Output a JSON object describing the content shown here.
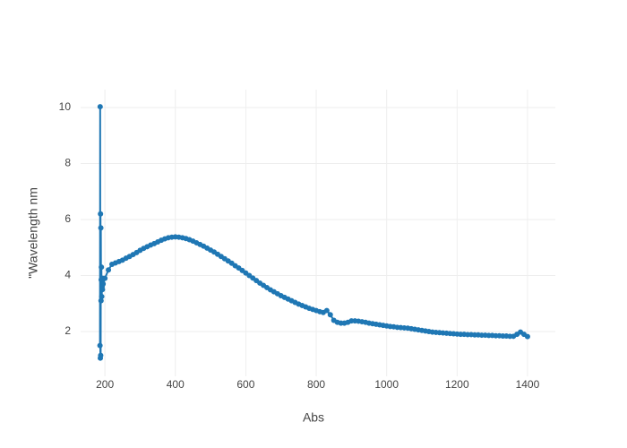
{
  "chart_data": {
    "type": "line",
    "mode": "lines+markers",
    "color": "#1f77b4",
    "x_label": "Abs",
    "y_label": "\"Wavelength nm",
    "xlim": [
      131,
      1479
    ],
    "ylim": [
      0.4,
      10.64
    ],
    "xticks": [
      200,
      400,
      600,
      800,
      1000,
      1200,
      1400
    ],
    "yticks": [
      2,
      4,
      6,
      8,
      10
    ],
    "grid": true,
    "x": [
      186,
      186.5,
      187,
      187.5,
      188,
      188.5,
      189,
      189.5,
      190,
      191,
      192,
      193,
      194,
      195,
      200,
      210,
      220,
      230,
      240,
      250,
      260,
      270,
      280,
      290,
      300,
      310,
      320,
      330,
      340,
      350,
      360,
      370,
      380,
      390,
      400,
      410,
      420,
      430,
      440,
      450,
      460,
      470,
      480,
      490,
      500,
      510,
      520,
      530,
      540,
      550,
      560,
      570,
      580,
      590,
      600,
      610,
      620,
      630,
      640,
      650,
      660,
      670,
      680,
      690,
      700,
      710,
      720,
      730,
      740,
      750,
      760,
      770,
      780,
      790,
      800,
      810,
      820,
      830,
      840,
      850,
      860,
      870,
      880,
      890,
      900,
      910,
      920,
      930,
      940,
      950,
      960,
      970,
      980,
      990,
      1000,
      1010,
      1020,
      1030,
      1040,
      1050,
      1060,
      1070,
      1080,
      1090,
      1100,
      1110,
      1120,
      1130,
      1140,
      1150,
      1160,
      1170,
      1180,
      1190,
      1200,
      1210,
      1220,
      1230,
      1240,
      1250,
      1260,
      1270,
      1280,
      1290,
      1300,
      1310,
      1320,
      1330,
      1340,
      1350,
      1360,
      1370,
      1380,
      1390,
      1400
    ],
    "values": [
      1.5,
      10.03,
      1.05,
      6.2,
      1.15,
      5.7,
      3.1,
      3.85,
      4.3,
      3.25,
      3.6,
      3.5,
      3.9,
      3.7,
      3.9,
      4.2,
      4.4,
      4.45,
      4.5,
      4.55,
      4.62,
      4.68,
      4.75,
      4.82,
      4.9,
      4.97,
      5.03,
      5.09,
      5.14,
      5.2,
      5.26,
      5.31,
      5.35,
      5.37,
      5.38,
      5.37,
      5.35,
      5.32,
      5.28,
      5.23,
      5.17,
      5.11,
      5.05,
      4.98,
      4.91,
      4.84,
      4.76,
      4.68,
      4.6,
      4.52,
      4.44,
      4.35,
      4.27,
      4.18,
      4.09,
      4.0,
      3.91,
      3.82,
      3.73,
      3.65,
      3.57,
      3.49,
      3.42,
      3.35,
      3.28,
      3.22,
      3.16,
      3.1,
      3.04,
      2.98,
      2.93,
      2.88,
      2.83,
      2.79,
      2.75,
      2.71,
      2.68,
      2.75,
      2.6,
      2.4,
      2.33,
      2.3,
      2.3,
      2.33,
      2.38,
      2.38,
      2.37,
      2.35,
      2.33,
      2.3,
      2.28,
      2.26,
      2.24,
      2.22,
      2.2,
      2.18,
      2.17,
      2.15,
      2.14,
      2.13,
      2.12,
      2.1,
      2.08,
      2.06,
      2.04,
      2.02,
      2.0,
      1.98,
      1.97,
      1.96,
      1.95,
      1.94,
      1.93,
      1.92,
      1.91,
      1.9,
      1.9,
      1.89,
      1.89,
      1.88,
      1.88,
      1.87,
      1.87,
      1.86,
      1.86,
      1.85,
      1.85,
      1.84,
      1.84,
      1.83,
      1.83,
      1.9,
      1.98,
      1.9,
      1.82
    ]
  }
}
